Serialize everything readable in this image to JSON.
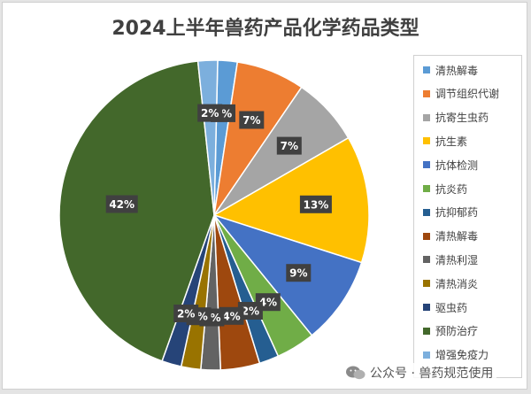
{
  "chart_data": {
    "type": "pie",
    "title": "2024上半年兽药产品化学药品类型",
    "slices": [
      {
        "name": "清热解毒",
        "value": 2,
        "label": "2%",
        "color": "#5B9BD5"
      },
      {
        "name": "调节组织代谢",
        "value": 7,
        "label": "7%",
        "color": "#ED7D31"
      },
      {
        "name": "抗寄生虫药",
        "value": 7,
        "label": "7%",
        "color": "#A5A5A5"
      },
      {
        "name": "抗生素",
        "value": 13,
        "label": "13%",
        "color": "#FFC000"
      },
      {
        "name": "抗体检测",
        "value": 9,
        "label": "9%",
        "color": "#4472C4"
      },
      {
        "name": "抗炎药",
        "value": 4,
        "label": "4%",
        "color": "#70AD47"
      },
      {
        "name": "抗抑郁药",
        "value": 2,
        "label": "2%",
        "color": "#255E91"
      },
      {
        "name": "清热解毒",
        "value": 4,
        "label": "4%",
        "color": "#9E480E"
      },
      {
        "name": "清热利湿",
        "value": 2,
        "label": "2%",
        "color": "#636363"
      },
      {
        "name": "清热消炎",
        "value": 2,
        "label": "2%",
        "color": "#997300"
      },
      {
        "name": "驱虫药",
        "value": 2,
        "label": "2%",
        "color": "#264478"
      },
      {
        "name": "预防治疗",
        "value": 42,
        "label": "42%",
        "color": "#43682B"
      },
      {
        "name": "增强免疫力",
        "value": 2,
        "label": "2%",
        "color": "#7CAFDD"
      }
    ],
    "legend_position": "right"
  },
  "watermark": {
    "icon": "wechat-icon",
    "text": "公众号 · 兽药规范使用"
  }
}
